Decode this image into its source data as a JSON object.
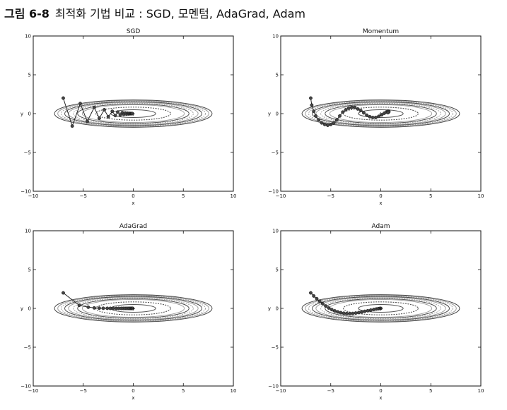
{
  "figure": {
    "label": "그림 6-8",
    "caption": "최적화 기법 비교 : SGD, 모멘텀, AdaGrad, Adam"
  },
  "chart_data": [
    {
      "type": "line",
      "title": "SGD",
      "xlabel": "x",
      "ylabel": "y",
      "xlim": [
        -10,
        10
      ],
      "ylim": [
        -10,
        10
      ],
      "xticks": [
        -10,
        -5,
        0,
        5,
        10
      ],
      "yticks": [
        -10,
        -5,
        0,
        5,
        10
      ],
      "xtick_labels": [
        "−10",
        "−5",
        "0",
        "5",
        "10"
      ],
      "ytick_labels": [
        "−10",
        "−5",
        "0",
        "5",
        "10"
      ],
      "grid": false,
      "contour": "f(x, y) = x²/20 + y², elliptical level curves centered at (0, 0)",
      "path": [
        [
          -7.0,
          2.0
        ],
        [
          -6.1,
          -1.6
        ],
        [
          -5.3,
          1.3
        ],
        [
          -4.6,
          -1.0
        ],
        [
          -3.9,
          0.8
        ],
        [
          -3.4,
          -0.6
        ],
        [
          -2.9,
          0.5
        ],
        [
          -2.5,
          -0.4
        ],
        [
          -2.1,
          0.3
        ],
        [
          -1.8,
          -0.25
        ],
        [
          -1.55,
          0.2
        ],
        [
          -1.3,
          -0.16
        ],
        [
          -1.1,
          0.13
        ],
        [
          -0.95,
          -0.1
        ],
        [
          -0.8,
          0.08
        ],
        [
          -0.68,
          -0.06
        ],
        [
          -0.57,
          0.05
        ],
        [
          -0.48,
          -0.04
        ],
        [
          -0.4,
          0.03
        ],
        [
          -0.33,
          -0.02
        ],
        [
          -0.27,
          0.015
        ],
        [
          -0.22,
          -0.01
        ],
        [
          -0.17,
          0.008
        ],
        [
          -0.13,
          -0.006
        ],
        [
          -0.1,
          0.004
        ]
      ]
    },
    {
      "type": "line",
      "title": "Momentum",
      "xlabel": "x",
      "ylabel": "y",
      "xlim": [
        -10,
        10
      ],
      "ylim": [
        -10,
        10
      ],
      "xticks": [
        -10,
        -5,
        0,
        5,
        10
      ],
      "yticks": [
        -10,
        -5,
        0,
        5,
        10
      ],
      "xtick_labels": [
        "−10",
        "−5",
        "0",
        "5",
        "10"
      ],
      "ytick_labels": [
        "−10",
        "−5",
        "0",
        "5",
        "10"
      ],
      "grid": false,
      "contour": "f(x, y) = x²/20 + y², elliptical level curves centered at (0, 0)",
      "path": [
        [
          -7.0,
          2.0
        ],
        [
          -6.9,
          1.1
        ],
        [
          -6.7,
          0.3
        ],
        [
          -6.5,
          -0.3
        ],
        [
          -6.2,
          -0.8
        ],
        [
          -5.9,
          -1.2
        ],
        [
          -5.6,
          -1.4
        ],
        [
          -5.3,
          -1.5
        ],
        [
          -5.0,
          -1.4
        ],
        [
          -4.7,
          -1.2
        ],
        [
          -4.4,
          -0.8
        ],
        [
          -4.1,
          -0.3
        ],
        [
          -3.8,
          0.2
        ],
        [
          -3.5,
          0.5
        ],
        [
          -3.2,
          0.7
        ],
        [
          -2.9,
          0.8
        ],
        [
          -2.6,
          0.8
        ],
        [
          -2.3,
          0.6
        ],
        [
          -2.0,
          0.4
        ],
        [
          -1.7,
          0.1
        ],
        [
          -1.4,
          -0.2
        ],
        [
          -1.1,
          -0.4
        ],
        [
          -0.8,
          -0.5
        ],
        [
          -0.5,
          -0.5
        ],
        [
          -0.2,
          -0.35
        ],
        [
          0.1,
          -0.15
        ],
        [
          0.35,
          0.05
        ],
        [
          0.55,
          0.2
        ],
        [
          0.7,
          0.3
        ],
        [
          0.8,
          0.3
        ],
        [
          0.8,
          0.22
        ],
        [
          0.72,
          0.12
        ]
      ]
    },
    {
      "type": "line",
      "title": "AdaGrad",
      "xlabel": "x",
      "ylabel": "y",
      "xlim": [
        -10,
        10
      ],
      "ylim": [
        -10,
        10
      ],
      "xticks": [
        -10,
        -5,
        0,
        5,
        10
      ],
      "yticks": [
        -10,
        -5,
        0,
        5,
        10
      ],
      "xtick_labels": [
        "−10",
        "−5",
        "0",
        "5",
        "10"
      ],
      "ytick_labels": [
        "−10",
        "−5",
        "0",
        "5",
        "10"
      ],
      "grid": false,
      "contour": "f(x, y) = x²/20 + y², elliptical level curves centered at (0, 0)",
      "path": [
        [
          -7.0,
          2.0
        ],
        [
          -5.4,
          0.4
        ],
        [
          -4.5,
          0.15
        ],
        [
          -3.9,
          0.06
        ],
        [
          -3.4,
          0.03
        ],
        [
          -3.0,
          0.015
        ],
        [
          -2.6,
          0.008
        ],
        [
          -2.3,
          0.004
        ],
        [
          -2.0,
          0.002
        ],
        [
          -1.7,
          0.0
        ],
        [
          -1.45,
          0.0
        ],
        [
          -1.2,
          0.0
        ],
        [
          -1.0,
          0.0
        ],
        [
          -0.82,
          0.0
        ],
        [
          -0.66,
          0.0
        ],
        [
          -0.52,
          0.0
        ],
        [
          -0.4,
          0.0
        ],
        [
          -0.3,
          0.0
        ],
        [
          -0.22,
          0.0
        ],
        [
          -0.15,
          0.0
        ],
        [
          -0.1,
          0.0
        ],
        [
          -0.06,
          0.0
        ]
      ]
    },
    {
      "type": "line",
      "title": "Adam",
      "xlabel": "x",
      "ylabel": "y",
      "xlim": [
        -10,
        10
      ],
      "ylim": [
        -10,
        10
      ],
      "xticks": [
        -10,
        -5,
        0,
        5,
        10
      ],
      "yticks": [
        -10,
        -5,
        0,
        5,
        10
      ],
      "xtick_labels": [
        "−10",
        "−5",
        "0",
        "5",
        "10"
      ],
      "ytick_labels": [
        "−10",
        "−5",
        "0",
        "5",
        "10"
      ],
      "grid": false,
      "contour": "f(x, y) = x²/20 + y², elliptical level curves centered at (0, 0)",
      "path": [
        [
          -7.0,
          2.0
        ],
        [
          -6.7,
          1.6
        ],
        [
          -6.4,
          1.25
        ],
        [
          -6.1,
          0.9
        ],
        [
          -5.8,
          0.6
        ],
        [
          -5.5,
          0.3
        ],
        [
          -5.2,
          0.05
        ],
        [
          -4.9,
          -0.15
        ],
        [
          -4.6,
          -0.32
        ],
        [
          -4.3,
          -0.45
        ],
        [
          -4.0,
          -0.55
        ],
        [
          -3.7,
          -0.62
        ],
        [
          -3.4,
          -0.66
        ],
        [
          -3.1,
          -0.67
        ],
        [
          -2.8,
          -0.65
        ],
        [
          -2.5,
          -0.6
        ],
        [
          -2.2,
          -0.54
        ],
        [
          -1.9,
          -0.46
        ],
        [
          -1.6,
          -0.38
        ],
        [
          -1.3,
          -0.3
        ],
        [
          -1.0,
          -0.22
        ],
        [
          -0.7,
          -0.14
        ],
        [
          -0.45,
          -0.08
        ],
        [
          -0.25,
          -0.04
        ],
        [
          -0.1,
          -0.01
        ],
        [
          0.0,
          0.0
        ]
      ]
    }
  ]
}
